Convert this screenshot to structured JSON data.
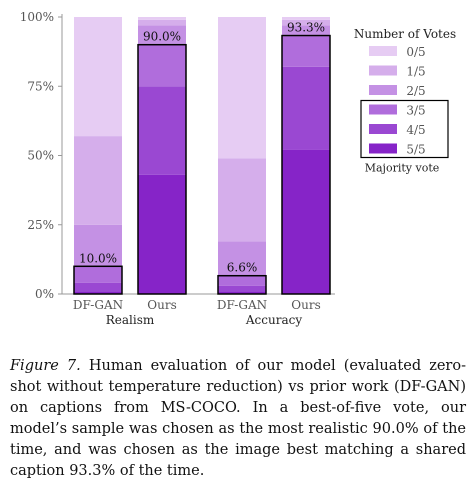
{
  "chart_data": {
    "type": "bar",
    "stacked": true,
    "groups": [
      {
        "label": "Realism",
        "bars": [
          "DF-GAN",
          "Ours"
        ]
      },
      {
        "label": "Accuracy",
        "bars": [
          "DF-GAN",
          "Ours"
        ]
      }
    ],
    "categories": [
      "DF-GAN",
      "Ours",
      "DF-GAN",
      "Ours"
    ],
    "series": [
      {
        "name": "0/5",
        "color": "#e6ccf3",
        "values": [
          43,
          1,
          51,
          1
        ]
      },
      {
        "name": "1/5",
        "color": "#d5aeeb",
        "values": [
          32,
          2,
          30,
          2
        ]
      },
      {
        "name": "2/5",
        "color": "#c491e4",
        "values": [
          15,
          7,
          12,
          4
        ]
      },
      {
        "name": "3/5",
        "color": "#b06ddc",
        "values": [
          6,
          15,
          4,
          11
        ]
      },
      {
        "name": "4/5",
        "color": "#9a48d2",
        "values": [
          3,
          32,
          2,
          30
        ]
      },
      {
        "name": "5/5",
        "color": "#8624c8",
        "values": [
          1,
          43,
          1,
          52
        ]
      }
    ],
    "majority_vote_values": [
      10.0,
      90.0,
      6.6,
      93.3
    ],
    "data_labels": [
      "10.0%",
      "90.0%",
      "6.6%",
      "93.3%"
    ],
    "yticks": [
      "0%",
      "25%",
      "50%",
      "75%",
      "100%"
    ],
    "ylim": [
      0,
      100
    ],
    "legend": {
      "title": "Number of Votes",
      "placement": "right",
      "extra_entry": "Majority vote"
    }
  },
  "caption": {
    "figure_label": "Figure 7.",
    "text": " Human evaluation of our model (evaluated zero-shot without temperature reduction) vs prior work (DF-GAN) on captions from MS-COCO. In a best-of-five vote, our model’s sample was chosen as the most realistic 90.0% of the time, and was chosen as the image best matching a shared caption 93.3% of the time."
  }
}
